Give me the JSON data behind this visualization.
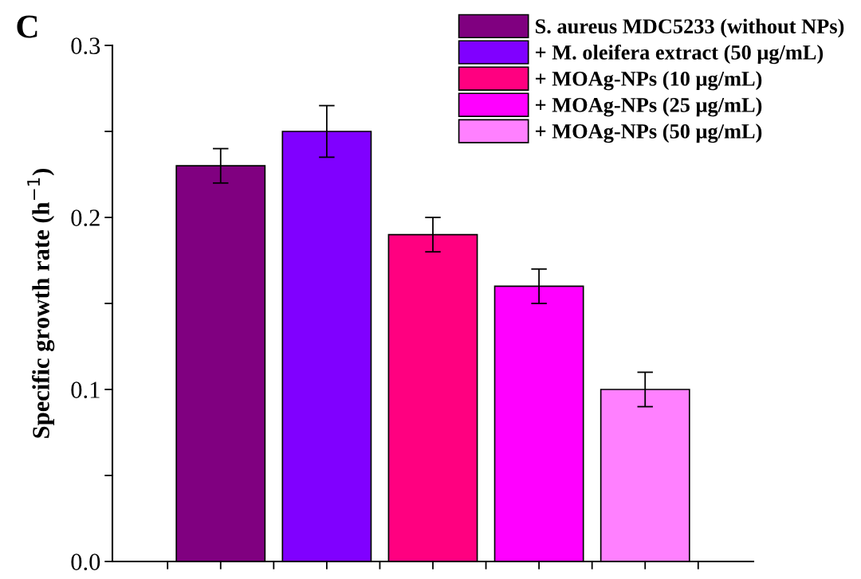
{
  "chart_data": {
    "type": "bar",
    "ylabel": "Specific growth rate (h$^{−1}$)",
    "annotations": [
      "C"
    ],
    "categories": [
      null,
      null,
      null,
      null,
      null
    ],
    "series": [
      {
        "name": "S. aureus MDC5233 (without NPs)",
        "color": "#800080",
        "values": [
          0.23,
          null,
          null,
          null,
          null
        ],
        "errors": [
          0.01,
          null,
          null,
          null,
          null
        ]
      },
      {
        "name": "+ M. oleifera extract (50 μg/mL)",
        "color": "#8000ff",
        "values": [
          null,
          0.25,
          null,
          null,
          null
        ],
        "errors": [
          null,
          0.015,
          null,
          null,
          null
        ]
      },
      {
        "name": "+ MOAg-NPs (10 μg/mL)",
        "color": "#ff0080",
        "values": [
          null,
          null,
          0.19,
          null,
          null
        ],
        "errors": [
          null,
          null,
          0.01,
          null,
          null
        ]
      },
      {
        "name": "+ MOAg-NPs (25 μg/mL)",
        "color": "#ff00ff",
        "values": [
          null,
          null,
          null,
          0.16,
          null
        ],
        "errors": [
          null,
          null,
          null,
          0.01,
          null
        ]
      },
      {
        "name": "+ MOAg-NPs (50 μg/mL)",
        "color": "#ff80ff",
        "values": [
          null,
          null,
          null,
          null,
          0.1
        ],
        "errors": [
          null,
          null,
          null,
          null,
          0.01
        ]
      }
    ],
    "ylim": [
      0.0,
      0.3
    ],
    "yticks": [
      {
        "value": 0.0,
        "label": "0.0"
      },
      {
        "value": 0.05,
        "label": null
      },
      0.1,
      {
        "value": 0.15,
        "label": null
      },
      0.2,
      {
        "value": 0.25,
        "label": null
      },
      0.3
    ],
    "tick_labels": "y",
    "grid": false,
    "legend": "top right"
  }
}
